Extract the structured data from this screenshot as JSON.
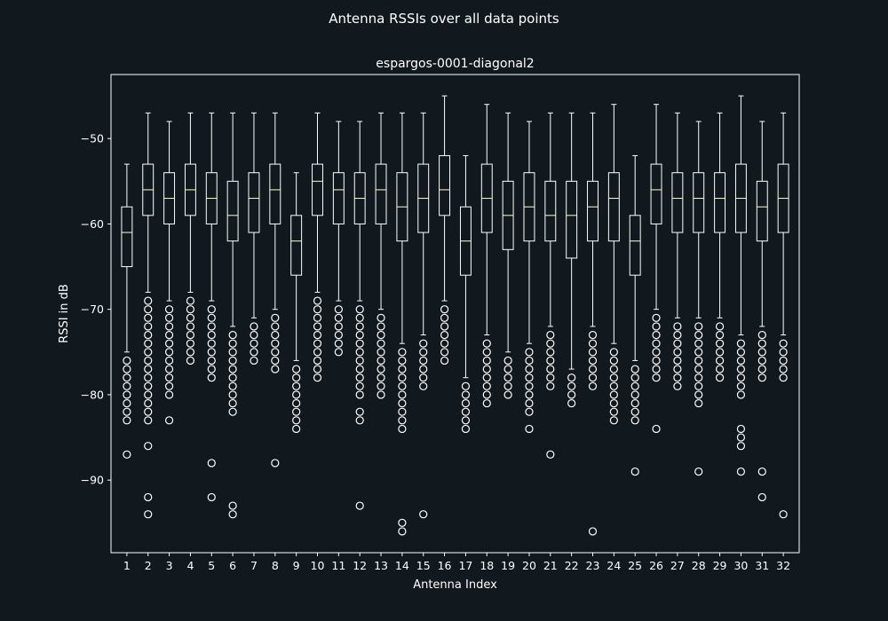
{
  "figure_title": "Antenna RSSIs over all data points",
  "colors": {
    "background": "#11181e",
    "foreground": "#ffffff",
    "median": "#ffffcc"
  },
  "chart_data": {
    "type": "box",
    "title": "espargos-0001-diagonal2",
    "xlabel": "Antenna Index",
    "ylabel": "RSSI in dB",
    "ylim": [
      -98.5,
      -42.5
    ],
    "yticks": [
      -90,
      -80,
      -70,
      -60,
      -50
    ],
    "grid": false,
    "categories": [
      "1",
      "2",
      "3",
      "4",
      "5",
      "6",
      "7",
      "8",
      "9",
      "10",
      "11",
      "12",
      "13",
      "14",
      "15",
      "16",
      "17",
      "18",
      "19",
      "20",
      "21",
      "22",
      "23",
      "24",
      "25",
      "26",
      "27",
      "28",
      "29",
      "30",
      "31",
      "32"
    ],
    "boxes": [
      {
        "q1": -65,
        "median": -61,
        "q3": -58,
        "whislo": -75,
        "whishi": -53,
        "fliers": [
          -76,
          -77,
          -78,
          -79,
          -80,
          -81,
          -82,
          -83,
          -87
        ]
      },
      {
        "q1": -59,
        "median": -56,
        "q3": -53,
        "whislo": -68,
        "whishi": -47,
        "fliers": [
          -69,
          -70,
          -71,
          -72,
          -73,
          -74,
          -75,
          -76,
          -77,
          -78,
          -79,
          -80,
          -81,
          -82,
          -83,
          -86,
          -92,
          -94
        ]
      },
      {
        "q1": -60,
        "median": -57,
        "q3": -54,
        "whislo": -69,
        "whishi": -48,
        "fliers": [
          -70,
          -71,
          -72,
          -73,
          -74,
          -75,
          -76,
          -77,
          -78,
          -79,
          -80,
          -83
        ]
      },
      {
        "q1": -59,
        "median": -56,
        "q3": -53,
        "whislo": -68,
        "whishi": -47,
        "fliers": [
          -69,
          -70,
          -71,
          -72,
          -73,
          -74,
          -75,
          -76
        ]
      },
      {
        "q1": -60,
        "median": -57,
        "q3": -54,
        "whislo": -69,
        "whishi": -47,
        "fliers": [
          -70,
          -71,
          -72,
          -73,
          -74,
          -75,
          -76,
          -77,
          -78,
          -88,
          -92
        ]
      },
      {
        "q1": -62,
        "median": -59,
        "q3": -55,
        "whislo": -72,
        "whishi": -47,
        "fliers": [
          -73,
          -74,
          -75,
          -76,
          -77,
          -78,
          -79,
          -80,
          -81,
          -82,
          -93,
          -94
        ]
      },
      {
        "q1": -61,
        "median": -57,
        "q3": -54,
        "whislo": -71,
        "whishi": -47,
        "fliers": [
          -72,
          -73,
          -74,
          -75,
          -76
        ]
      },
      {
        "q1": -60,
        "median": -56,
        "q3": -53,
        "whislo": -70,
        "whishi": -47,
        "fliers": [
          -71,
          -72,
          -73,
          -74,
          -75,
          -76,
          -77,
          -88
        ]
      },
      {
        "q1": -66,
        "median": -62,
        "q3": -59,
        "whislo": -76,
        "whishi": -54,
        "fliers": [
          -77,
          -78,
          -79,
          -80,
          -81,
          -82,
          -83,
          -84
        ]
      },
      {
        "q1": -59,
        "median": -55,
        "q3": -53,
        "whislo": -68,
        "whishi": -47,
        "fliers": [
          -69,
          -70,
          -71,
          -72,
          -73,
          -74,
          -75,
          -76,
          -77,
          -78
        ]
      },
      {
        "q1": -60,
        "median": -56,
        "q3": -54,
        "whislo": -69,
        "whishi": -48,
        "fliers": [
          -70,
          -71,
          -72,
          -73,
          -74,
          -75
        ]
      },
      {
        "q1": -60,
        "median": -57,
        "q3": -54,
        "whislo": -69,
        "whishi": -48,
        "fliers": [
          -70,
          -71,
          -72,
          -73,
          -74,
          -75,
          -76,
          -77,
          -78,
          -79,
          -80,
          -82,
          -83,
          -93
        ]
      },
      {
        "q1": -60,
        "median": -56,
        "q3": -53,
        "whislo": -70,
        "whishi": -47,
        "fliers": [
          -71,
          -72,
          -73,
          -74,
          -75,
          -76,
          -77,
          -78,
          -79,
          -80
        ]
      },
      {
        "q1": -62,
        "median": -58,
        "q3": -54,
        "whislo": -74,
        "whishi": -47,
        "fliers": [
          -75,
          -76,
          -77,
          -78,
          -79,
          -80,
          -81,
          -82,
          -83,
          -84,
          -95,
          -96
        ]
      },
      {
        "q1": -61,
        "median": -57,
        "q3": -53,
        "whislo": -73,
        "whishi": -47,
        "fliers": [
          -74,
          -75,
          -76,
          -77,
          -78,
          -79,
          -94
        ]
      },
      {
        "q1": -59,
        "median": -56,
        "q3": -52,
        "whislo": -69,
        "whishi": -45,
        "fliers": [
          -70,
          -71,
          -72,
          -73,
          -74,
          -75,
          -76
        ]
      },
      {
        "q1": -66,
        "median": -62,
        "q3": -58,
        "whislo": -78,
        "whishi": -52,
        "fliers": [
          -79,
          -80,
          -81,
          -82,
          -83,
          -84
        ]
      },
      {
        "q1": -61,
        "median": -57,
        "q3": -53,
        "whislo": -73,
        "whishi": -46,
        "fliers": [
          -74,
          -75,
          -76,
          -77,
          -78,
          -79,
          -80,
          -81
        ]
      },
      {
        "q1": -63,
        "median": -59,
        "q3": -55,
        "whislo": -75,
        "whishi": -47,
        "fliers": [
          -76,
          -77,
          -78,
          -79,
          -80
        ]
      },
      {
        "q1": -62,
        "median": -58,
        "q3": -54,
        "whislo": -74,
        "whishi": -48,
        "fliers": [
          -75,
          -76,
          -77,
          -78,
          -79,
          -80,
          -81,
          -82,
          -84
        ]
      },
      {
        "q1": -62,
        "median": -59,
        "q3": -55,
        "whislo": -72,
        "whishi": -47,
        "fliers": [
          -73,
          -74,
          -75,
          -76,
          -77,
          -78,
          -79,
          -87
        ]
      },
      {
        "q1": -64,
        "median": -59,
        "q3": -55,
        "whislo": -77,
        "whishi": -47,
        "fliers": [
          -78,
          -79,
          -80,
          -81
        ]
      },
      {
        "q1": -62,
        "median": -58,
        "q3": -55,
        "whislo": -72,
        "whishi": -47,
        "fliers": [
          -73,
          -74,
          -75,
          -76,
          -77,
          -78,
          -79,
          -96
        ]
      },
      {
        "q1": -62,
        "median": -57,
        "q3": -54,
        "whislo": -74,
        "whishi": -46,
        "fliers": [
          -75,
          -76,
          -77,
          -78,
          -79,
          -80,
          -81,
          -82,
          -83
        ]
      },
      {
        "q1": -66,
        "median": -62,
        "q3": -59,
        "whislo": -76,
        "whishi": -52,
        "fliers": [
          -77,
          -78,
          -79,
          -80,
          -81,
          -82,
          -83,
          -89
        ]
      },
      {
        "q1": -60,
        "median": -56,
        "q3": -53,
        "whislo": -70,
        "whishi": -46,
        "fliers": [
          -71,
          -72,
          -73,
          -74,
          -75,
          -76,
          -77,
          -78,
          -84
        ]
      },
      {
        "q1": -61,
        "median": -57,
        "q3": -54,
        "whislo": -71,
        "whishi": -47,
        "fliers": [
          -72,
          -73,
          -74,
          -75,
          -76,
          -77,
          -78,
          -79
        ]
      },
      {
        "q1": -61,
        "median": -57,
        "q3": -54,
        "whislo": -71,
        "whishi": -48,
        "fliers": [
          -72,
          -73,
          -74,
          -75,
          -76,
          -77,
          -78,
          -79,
          -80,
          -81,
          -89
        ]
      },
      {
        "q1": -61,
        "median": -57,
        "q3": -54,
        "whislo": -71,
        "whishi": -47,
        "fliers": [
          -72,
          -73,
          -74,
          -75,
          -76,
          -77,
          -78
        ]
      },
      {
        "q1": -61,
        "median": -57,
        "q3": -53,
        "whislo": -73,
        "whishi": -45,
        "fliers": [
          -74,
          -75,
          -76,
          -77,
          -78,
          -79,
          -80,
          -84,
          -85,
          -86,
          -89
        ]
      },
      {
        "q1": -62,
        "median": -58,
        "q3": -55,
        "whislo": -72,
        "whishi": -48,
        "fliers": [
          -73,
          -74,
          -75,
          -76,
          -77,
          -78,
          -89,
          -92
        ]
      },
      {
        "q1": -61,
        "median": -57,
        "q3": -53,
        "whislo": -73,
        "whishi": -47,
        "fliers": [
          -74,
          -75,
          -76,
          -77,
          -78,
          -94
        ]
      }
    ]
  }
}
